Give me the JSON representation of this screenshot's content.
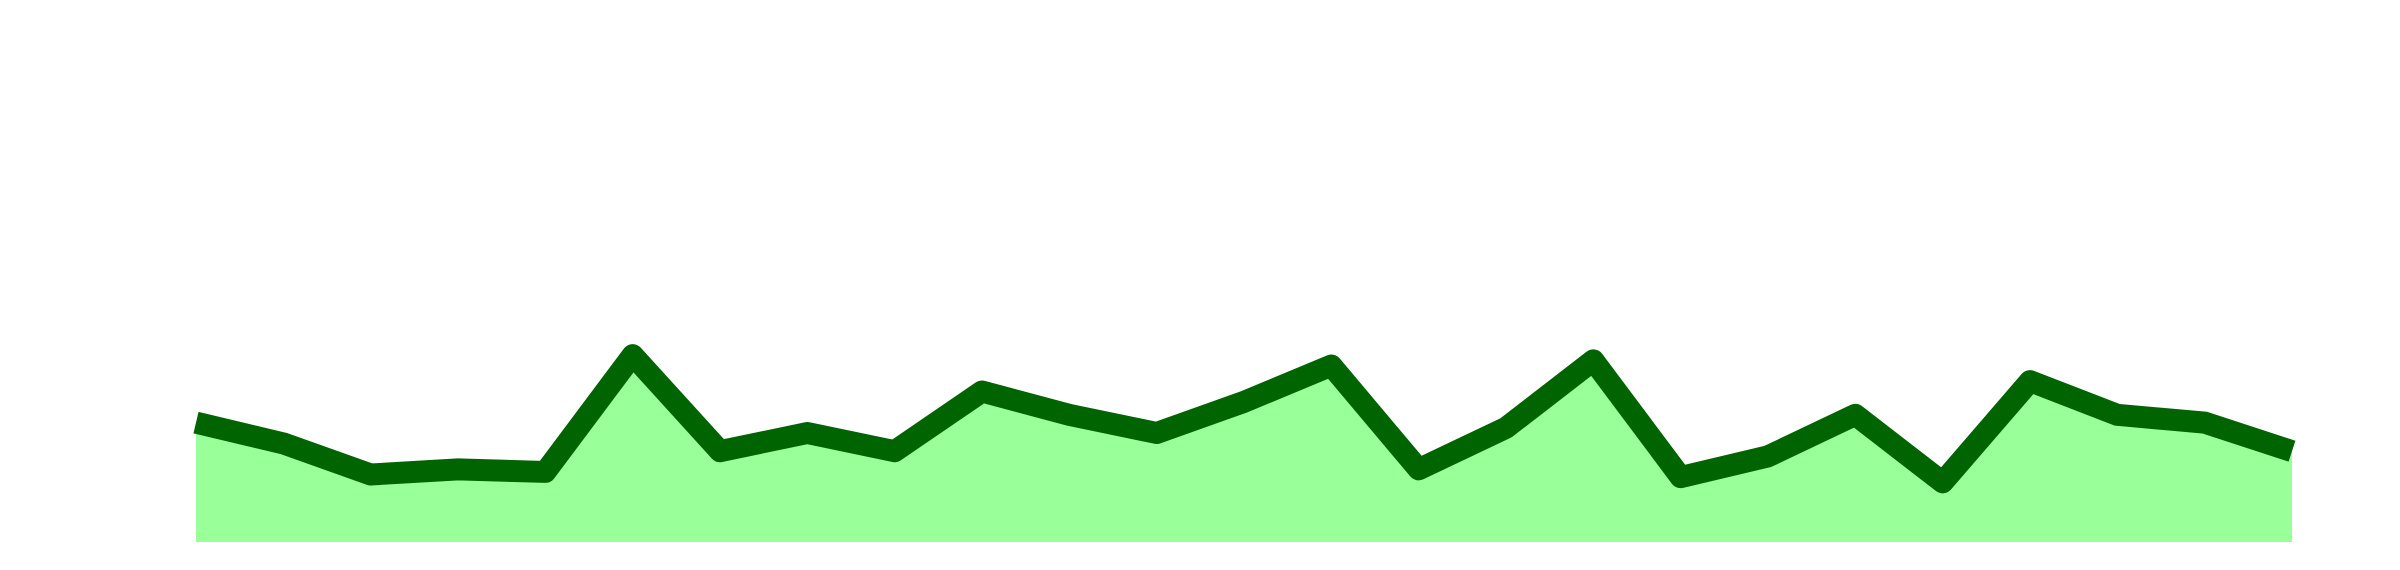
{
  "chart_data": {
    "type": "area",
    "title": "",
    "xlabel": "",
    "ylabel": "",
    "grid": false,
    "legend": "none",
    "x": [
      0,
      1,
      2,
      3,
      4,
      5,
      6,
      7,
      8,
      9,
      10,
      11,
      12,
      13,
      14,
      15,
      16,
      17,
      18,
      19,
      20,
      21,
      22,
      23,
      24
    ],
    "series": [
      {
        "values": [
          4.6,
          3.8,
          2.6,
          2.8,
          2.7,
          7.2,
          3.5,
          4.2,
          3.5,
          5.8,
          4.9,
          4.2,
          5.4,
          6.8,
          2.8,
          4.4,
          7.0,
          2.5,
          3.3,
          4.9,
          2.3,
          6.2,
          4.9,
          4.6,
          3.5
        ],
        "line_color": "#006400",
        "fill_color": "#99FF99"
      }
    ],
    "ylim": [
      0,
      20
    ],
    "xlim": [
      0,
      24
    ]
  }
}
